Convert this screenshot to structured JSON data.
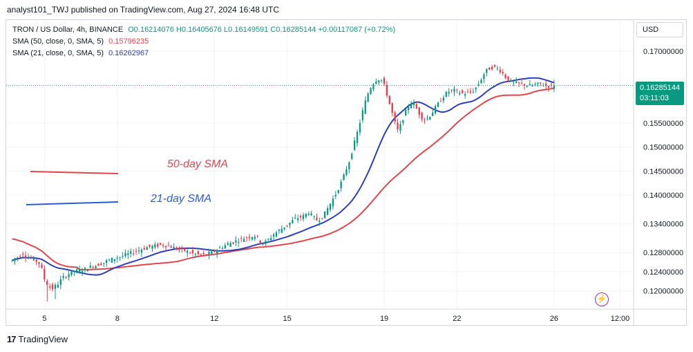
{
  "header": {
    "text": "analyst101_TWJ published on TradingView.com, Aug 27, 2024 16:48 UTC"
  },
  "legend": {
    "main_label": "TRON / US Dollar, 4h, BINANCE",
    "ohlc": "O0.16214076  H0.16405676  L0.16149591  C0.16285144  +0.00117087 (+0.72%)",
    "sma50_label": "SMA (50, close, 0, SMA, 5)",
    "sma50_value": "0.15796235",
    "sma21_label": "SMA (21, close, 0, SMA, 5)",
    "sma21_value": "0.16262967"
  },
  "currency_button": "USD",
  "price_tag": {
    "price": "0.16285144",
    "countdown": "03:11:03"
  },
  "annotations": {
    "sma50": "50-day SMA",
    "sma21": "21-day SMA"
  },
  "branding": "TradingView",
  "colors": {
    "up": "#089981",
    "down": "#f23645",
    "sma50": "#e0454d",
    "sma21": "#2a3fb8",
    "last_price": "#089981"
  },
  "chart_data": {
    "type": "candlestick",
    "title": "TRON / US Dollar, 4h, BINANCE",
    "ylim": [
      0.1162,
      0.1765
    ],
    "y_ticks": [
      0.12,
      0.124,
      0.128,
      0.134,
      0.14,
      0.145,
      0.15,
      0.155,
      0.17
    ],
    "y_tick_labels": [
      "0.12000000",
      "0.12400000",
      "0.12800000",
      "0.13400000",
      "0.14000000",
      "0.14500000",
      "0.15000000",
      "0.15500000",
      "0.17000000"
    ],
    "x_tick_labels": [
      "5",
      "8",
      "12",
      "15",
      "19",
      "22",
      "26",
      "12:00"
    ],
    "x_tick_candle_index": [
      12,
      39,
      75,
      102,
      138,
      165,
      201,
      225.5
    ],
    "last_price": 0.16285144,
    "x_view": [
      -2.2,
      230.5
    ],
    "candles_anchor_close": [
      0.1263,
      0.1268,
      0.127,
      0.1275,
      0.1278,
      0.1272,
      0.127,
      0.1268,
      0.1265,
      0.1262,
      0.1258,
      0.1245,
      0.1225,
      0.1215,
      0.1208,
      0.1205,
      0.121,
      0.1215,
      0.1222,
      0.1228,
      0.1232,
      0.1236,
      0.1239,
      0.1241,
      0.1242,
      0.1243,
      0.1244,
      0.1245,
      0.1248,
      0.125,
      0.1252,
      0.1253,
      0.1255,
      0.1257,
      0.1259,
      0.1262,
      0.1264,
      0.1266,
      0.1268,
      0.127,
      0.1271,
      0.1273,
      0.1275,
      0.1277,
      0.1279,
      0.1281,
      0.1283,
      0.1285,
      0.1287,
      0.1289,
      0.1291,
      0.1292,
      0.1293,
      0.1294,
      0.1295,
      0.1296,
      0.1296,
      0.1295,
      0.1294,
      0.1292,
      0.129,
      0.1288,
      0.1286,
      0.1285,
      0.1284,
      0.1282,
      0.128,
      0.1278,
      0.1277,
      0.1276,
      0.1275,
      0.1275,
      0.1276,
      0.1278,
      0.128,
      0.1283,
      0.1286,
      0.1289,
      0.1292,
      0.1295,
      0.1298,
      0.13,
      0.1302,
      0.1304,
      0.1306,
      0.1308,
      0.131,
      0.1312,
      0.1313,
      0.1314,
      0.1315,
      0.131,
      0.1303,
      0.13,
      0.1302,
      0.1306,
      0.1312,
      0.1318,
      0.1322,
      0.1326,
      0.133,
      0.1334,
      0.1338,
      0.1342,
      0.1346,
      0.135,
      0.1352,
      0.1354,
      0.1356,
      0.136,
      0.1364,
      0.1358,
      0.1352,
      0.1348,
      0.135,
      0.1354,
      0.1362,
      0.1372,
      0.1382,
      0.1392,
      0.1402,
      0.1414,
      0.1426,
      0.144,
      0.1455,
      0.147,
      0.149,
      0.151,
      0.153,
      0.1552,
      0.1575,
      0.1595,
      0.1612,
      0.1625,
      0.1634,
      0.164,
      0.1642,
      0.164,
      0.1628,
      0.161,
      0.159,
      0.157,
      0.155,
      0.1535,
      0.1545,
      0.156,
      0.1574,
      0.1586,
      0.1592,
      0.159,
      0.158,
      0.157,
      0.1562,
      0.1558,
      0.156,
      0.1566,
      0.1574,
      0.1582,
      0.159,
      0.1598,
      0.1606,
      0.1612,
      0.1616,
      0.1618,
      0.1618,
      0.1616,
      0.1614,
      0.1612,
      0.1612,
      0.1612,
      0.1614,
      0.1618,
      0.1624,
      0.1632,
      0.1642,
      0.1652,
      0.166,
      0.1664,
      0.1666,
      0.1666,
      0.1664,
      0.166,
      0.1654,
      0.1646,
      0.164,
      0.1636,
      0.1634,
      0.1633,
      0.1632,
      0.1631,
      0.163,
      0.1629,
      0.1628,
      0.1629,
      0.163,
      0.1631,
      0.1632,
      0.163,
      0.1628,
      0.1627,
      0.1628,
      0.16285144
    ]
  }
}
